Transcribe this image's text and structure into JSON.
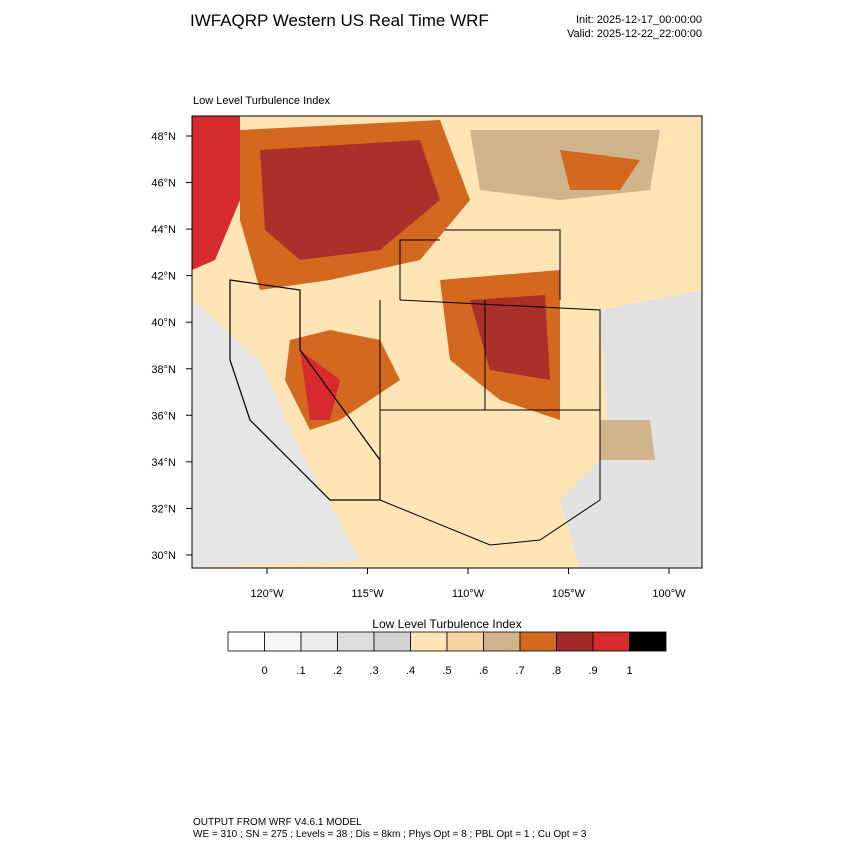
{
  "header": {
    "title": "IWFAQRP Western US Real Time WRF",
    "init": "Init: 2025-12-17_00:00:00",
    "valid": "Valid: 2025-12-22_22:00:00"
  },
  "map": {
    "subtitle": "Low Level Turbulence Index",
    "lat_labels": [
      "48°N",
      "46°N",
      "44°N",
      "42°N",
      "40°N",
      "38°N",
      "36°N",
      "34°N",
      "32°N",
      "30°N"
    ],
    "lon_labels": [
      "120°W",
      "115°W",
      "110°W",
      "105°W",
      "100°W"
    ]
  },
  "colorbar": {
    "title": "Low Level Turbulence Index",
    "colors": [
      "#ffffff",
      "#f6f6f6",
      "#ececec",
      "#dddddd",
      "#d2d2d2",
      "#ffe4b5",
      "#f5d3a2",
      "#d2b48c",
      "#d2691e",
      "#a52a2a",
      "#d62a2e",
      "#000000"
    ],
    "labels": [
      "0",
      ".1",
      ".2",
      ".3",
      ".4",
      ".5",
      ".6",
      ".7",
      ".8",
      ".9",
      "1"
    ]
  },
  "footer": {
    "line1": "OUTPUT FROM WRF V4.6.1 MODEL",
    "line2": "WE = 310 ; SN = 275 ; Levels = 38 ; Dis = 8km ; Phys Opt = 8 ; PBL Opt = 1 ; Cu Opt = 3"
  }
}
